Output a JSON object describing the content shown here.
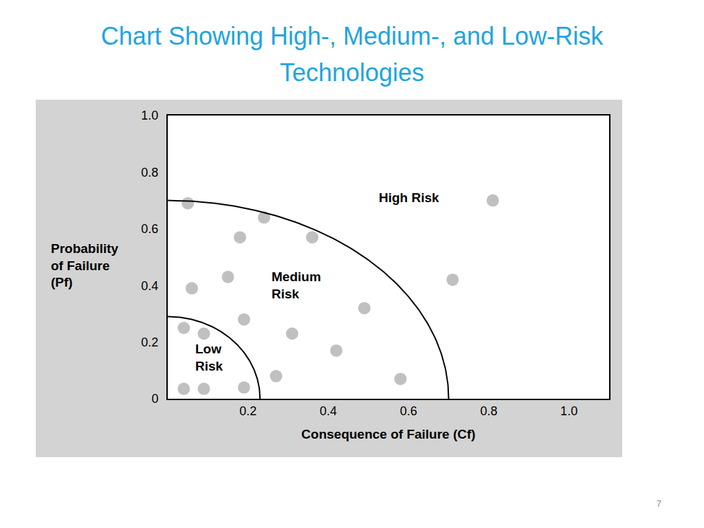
{
  "title": "Chart Showing High-, Medium-, and Low-Risk Technologies",
  "page_number": "7",
  "chart_data": {
    "type": "scatter",
    "xlabel": "Consequence of Failure (Cf)",
    "ylabel": "Probability\nof Failure\n(Pf)",
    "x": [
      0.05,
      0.24,
      0.18,
      0.36,
      0.81,
      0.06,
      0.15,
      0.71,
      0.19,
      0.49,
      0.04,
      0.09,
      0.31,
      0.42,
      0.27,
      0.58,
      0.04,
      0.09,
      0.19
    ],
    "values": [
      0.69,
      0.64,
      0.57,
      0.57,
      0.7,
      0.39,
      0.43,
      0.42,
      0.28,
      0.32,
      0.25,
      0.23,
      0.23,
      0.17,
      0.08,
      0.07,
      0.035,
      0.035,
      0.04
    ],
    "color": "#c0c0c0",
    "marker": "circle",
    "xlim": [
      0,
      1.1
    ],
    "ylim": [
      0,
      1
    ],
    "xticks": [
      0.2,
      0.4,
      0.6,
      0.8,
      {
        "value": 1,
        "label": "1.0"
      }
    ],
    "yticks": [
      0,
      0.2,
      0.4,
      0.6,
      0.8,
      {
        "value": 1,
        "label": "1.0"
      }
    ],
    "grid": false,
    "regions": [
      {
        "label": "Low\nRisk",
        "cf_radius": 0.23,
        "pf_radius": 0.29,
        "x": 0.065,
        "y": 0.145
      },
      {
        "label": "Medium\nRisk",
        "cf_radius": 0.7,
        "pf_radius": 0.7,
        "x": 0.255,
        "y": 0.4
      },
      {
        "label": "High Risk",
        "x": 0.523,
        "y": 0.71
      }
    ]
  }
}
